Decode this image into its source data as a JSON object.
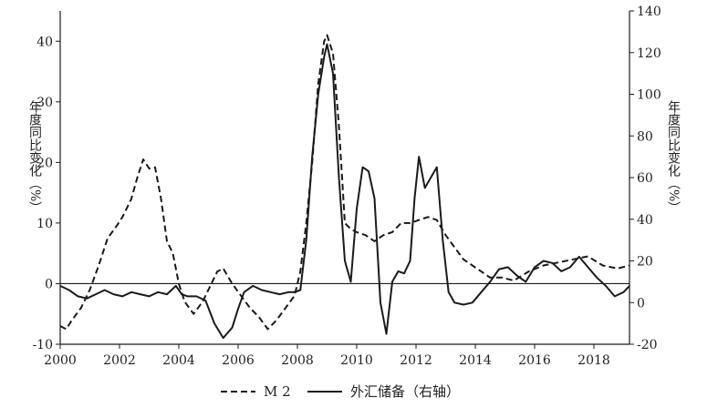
{
  "chart_data": {
    "type": "line",
    "title": "",
    "xlabel": "",
    "ylabel_left": "年度同比变化（%）",
    "ylabel_right": "年度同比变化（%）",
    "x_ticks": [
      "2000",
      "2002",
      "2004",
      "2006",
      "2008",
      "2010",
      "2012",
      "2014",
      "2016",
      "2018"
    ],
    "xlim": [
      2000,
      2019.2
    ],
    "ylim_left": [
      -10,
      45
    ],
    "ylim_right": [
      -20,
      140
    ],
    "y_ticks_left": [
      "-10",
      "0",
      "10",
      "20",
      "30",
      "40"
    ],
    "y_ticks_right": [
      "-20",
      "0",
      "20",
      "40",
      "60",
      "80",
      "100",
      "120",
      "140"
    ],
    "grid": false,
    "legend_position": "bottom-center",
    "legend": [
      "M 2",
      "外汇储备（右轴）"
    ],
    "series": [
      {
        "name": "M 2",
        "axis": "left",
        "style": "dashed",
        "color": "#1a1a1a",
        "x": [
          2000.0,
          2000.2,
          2000.4,
          2000.7,
          2001.0,
          2001.3,
          2001.6,
          2001.9,
          2002.1,
          2002.4,
          2002.6,
          2002.8,
          2003.0,
          2003.2,
          2003.4,
          2003.6,
          2003.8,
          2004.0,
          2004.2,
          2004.5,
          2004.8,
          2005.1,
          2005.3,
          2005.5,
          2005.8,
          2006.1,
          2006.4,
          2006.7,
          2007.0,
          2007.3,
          2007.6,
          2007.9,
          2008.1,
          2008.3,
          2008.5,
          2008.7,
          2008.9,
          2009.0,
          2009.2,
          2009.4,
          2009.6,
          2009.8,
          2010.0,
          2010.3,
          2010.6,
          2010.9,
          2011.2,
          2011.5,
          2011.8,
          2012.1,
          2012.4,
          2012.7,
          2013.0,
          2013.3,
          2013.6,
          2013.9,
          2014.2,
          2014.5,
          2014.9,
          2015.3,
          2015.8,
          2016.3,
          2016.8,
          2017.3,
          2017.8,
          2018.3,
          2018.8,
          2019.2
        ],
        "values": [
          -7,
          -7.5,
          -6,
          -4,
          -1,
          3,
          7.5,
          9.5,
          11,
          14,
          17.5,
          20.5,
          19,
          19.2,
          14,
          7,
          5,
          0,
          -3,
          -5,
          -3,
          0,
          2,
          2.5,
          0,
          -2,
          -4,
          -5.5,
          -7.5,
          -6,
          -4,
          -2,
          2,
          10,
          20,
          33,
          40,
          41,
          38,
          26,
          10,
          9,
          8.5,
          8,
          7,
          8,
          8.5,
          10,
          10,
          10.5,
          11,
          10.5,
          8,
          6,
          4,
          3,
          2,
          1,
          1,
          0.5,
          2,
          3,
          3.5,
          4,
          4.5,
          3,
          2.5,
          3
        ]
      },
      {
        "name": "外汇储备（右轴）",
        "axis": "right",
        "style": "solid",
        "color": "#1a1a1a",
        "x": [
          2000.0,
          2000.3,
          2000.6,
          2000.9,
          2001.2,
          2001.5,
          2001.8,
          2002.1,
          2002.4,
          2002.7,
          2003.0,
          2003.3,
          2003.6,
          2003.9,
          2004.1,
          2004.3,
          2004.6,
          2004.9,
          2005.2,
          2005.5,
          2005.8,
          2006.0,
          2006.2,
          2006.5,
          2006.8,
          2007.1,
          2007.4,
          2007.7,
          2007.9,
          2008.1,
          2008.3,
          2008.5,
          2008.7,
          2008.9,
          2009.0,
          2009.2,
          2009.4,
          2009.6,
          2009.8,
          2010.0,
          2010.2,
          2010.4,
          2010.6,
          2010.8,
          2011.0,
          2011.2,
          2011.4,
          2011.6,
          2011.8,
          2011.95,
          2012.1,
          2012.3,
          2012.5,
          2012.7,
          2012.9,
          2013.1,
          2013.3,
          2013.6,
          2013.9,
          2014.2,
          2014.5,
          2014.8,
          2015.1,
          2015.4,
          2015.7,
          2016.0,
          2016.3,
          2016.6,
          2016.9,
          2017.2,
          2017.5,
          2017.8,
          2018.1,
          2018.4,
          2018.7,
          2019.0,
          2019.2
        ],
        "values": [
          8,
          6,
          3,
          2,
          4,
          6,
          4,
          3,
          5,
          4,
          3,
          5,
          4,
          8,
          4,
          3,
          3,
          1,
          -10,
          -17,
          -12,
          -3,
          5,
          8,
          6,
          5,
          4,
          5,
          5,
          6,
          30,
          70,
          100,
          118,
          124,
          110,
          60,
          20,
          10,
          45,
          65,
          63,
          50,
          0,
          -15,
          10,
          15,
          14,
          20,
          50,
          70,
          55,
          60,
          65,
          30,
          5,
          0,
          -1,
          0,
          5,
          10,
          16,
          17,
          13,
          10,
          17,
          20,
          19,
          15,
          17,
          22,
          17,
          12,
          8,
          3,
          5,
          8
        ]
      }
    ]
  }
}
